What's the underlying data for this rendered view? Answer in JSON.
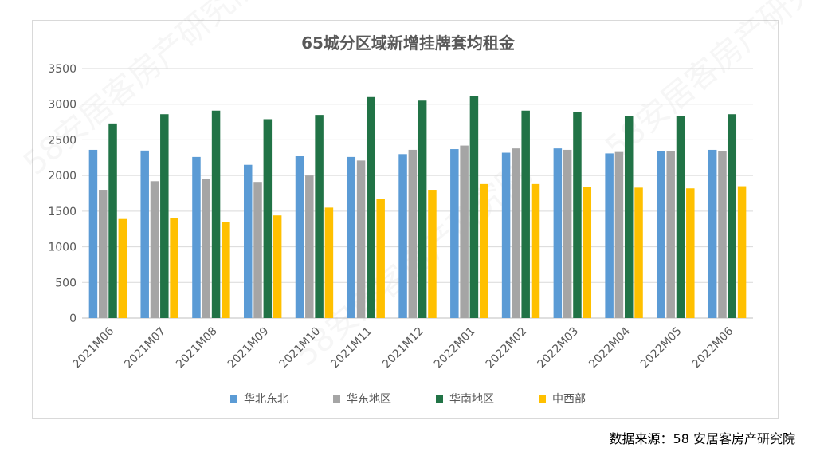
{
  "source_text": "数据来源：58 安居客房产研究院",
  "watermark_text": "58安居客房产研究院",
  "chart_data": {
    "type": "bar",
    "title": "65城分区域新增挂牌套均租金",
    "xlabel": "",
    "ylabel": "",
    "ylim": [
      0,
      3500
    ],
    "yticks": [
      0,
      500,
      1000,
      1500,
      2000,
      2500,
      3000,
      3500
    ],
    "grid": true,
    "legend_position": "bottom",
    "categories": [
      "2021M06",
      "2021M07",
      "2021M08",
      "2021M09",
      "2021M10",
      "2021M11",
      "2021M12",
      "2022M01",
      "2022M02",
      "2022M03",
      "2022M04",
      "2022M05",
      "2022M06"
    ],
    "series": [
      {
        "name": "华北东北",
        "color": "#5b9bd5",
        "values": [
          2360,
          2350,
          2260,
          2150,
          2270,
          2260,
          2300,
          2370,
          2320,
          2380,
          2310,
          2340,
          2360
        ]
      },
      {
        "name": "华东地区",
        "color": "#a5a5a5",
        "values": [
          1800,
          1920,
          1950,
          1910,
          2000,
          2210,
          2360,
          2420,
          2380,
          2360,
          2330,
          2340,
          2340
        ]
      },
      {
        "name": "华南地区",
        "color": "#217346",
        "values": [
          2730,
          2860,
          2910,
          2790,
          2850,
          3100,
          3050,
          3110,
          2910,
          2890,
          2840,
          2830,
          2860
        ]
      },
      {
        "name": "中西部",
        "color": "#ffc000",
        "values": [
          1390,
          1400,
          1350,
          1440,
          1550,
          1670,
          1800,
          1880,
          1880,
          1840,
          1830,
          1820,
          1850
        ]
      }
    ]
  }
}
